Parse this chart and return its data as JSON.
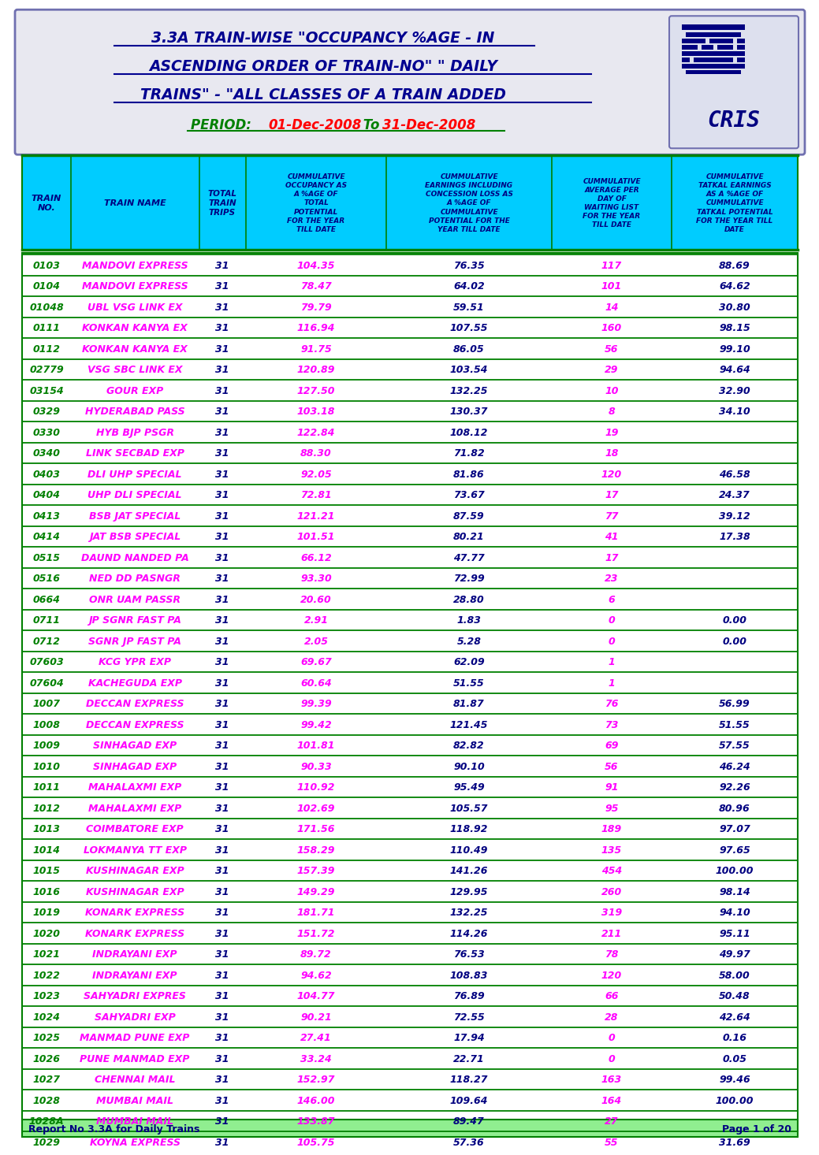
{
  "title_line1": "3.3A TRAIN-WISE \"OCCUPANCY %AGE - IN",
  "title_line2": "ASCENDING ORDER OF TRAIN-NO\" \" DAILY",
  "title_line3": "TRAINS\" - \"ALL CLASSES OF A TRAIN ADDED",
  "period_label": "PERIOD: ",
  "period_date1": "01-Dec-2008",
  "period_to": " To ",
  "period_date2": "31-Dec-2008",
  "footer_left": "Report No 3.3A for Daily Trains",
  "footer_right": "Page 1 of 20",
  "rows": [
    [
      "0103",
      "MANDOVI EXPRESS",
      "31",
      "104.35",
      "76.35",
      "117",
      "88.69"
    ],
    [
      "0104",
      "MANDOVI EXPRESS",
      "31",
      "78.47",
      "64.02",
      "101",
      "64.62"
    ],
    [
      "01048",
      "UBL VSG LINK EX",
      "31",
      "79.79",
      "59.51",
      "14",
      "30.80"
    ],
    [
      "0111",
      "KONKAN KANYA EX",
      "31",
      "116.94",
      "107.55",
      "160",
      "98.15"
    ],
    [
      "0112",
      "KONKAN KANYA EX",
      "31",
      "91.75",
      "86.05",
      "56",
      "99.10"
    ],
    [
      "02779",
      "VSG SBC LINK EX",
      "31",
      "120.89",
      "103.54",
      "29",
      "94.64"
    ],
    [
      "03154",
      "GOUR EXP",
      "31",
      "127.50",
      "132.25",
      "10",
      "32.90"
    ],
    [
      "0329",
      "HYDERABAD PASS",
      "31",
      "103.18",
      "130.37",
      "8",
      "34.10"
    ],
    [
      "0330",
      "HYB BJP PSGR",
      "31",
      "122.84",
      "108.12",
      "19",
      ""
    ],
    [
      "0340",
      "LINK SECBAD EXP",
      "31",
      "88.30",
      "71.82",
      "18",
      ""
    ],
    [
      "0403",
      "DLI UHP SPECIAL",
      "31",
      "92.05",
      "81.86",
      "120",
      "46.58"
    ],
    [
      "0404",
      "UHP DLI SPECIAL",
      "31",
      "72.81",
      "73.67",
      "17",
      "24.37"
    ],
    [
      "0413",
      "BSB JAT SPECIAL",
      "31",
      "121.21",
      "87.59",
      "77",
      "39.12"
    ],
    [
      "0414",
      "JAT BSB SPECIAL",
      "31",
      "101.51",
      "80.21",
      "41",
      "17.38"
    ],
    [
      "0515",
      "DAUND NANDED PA",
      "31",
      "66.12",
      "47.77",
      "17",
      ""
    ],
    [
      "0516",
      "NED DD PASNGR",
      "31",
      "93.30",
      "72.99",
      "23",
      ""
    ],
    [
      "0664",
      "ONR UAM PASSR",
      "31",
      "20.60",
      "28.80",
      "6",
      ""
    ],
    [
      "0711",
      "JP SGNR FAST PA",
      "31",
      "2.91",
      "1.83",
      "0",
      "0.00"
    ],
    [
      "0712",
      "SGNR JP FAST PA",
      "31",
      "2.05",
      "5.28",
      "0",
      "0.00"
    ],
    [
      "07603",
      "KCG YPR EXP",
      "31",
      "69.67",
      "62.09",
      "1",
      ""
    ],
    [
      "07604",
      "KACHEGUDA EXP",
      "31",
      "60.64",
      "51.55",
      "1",
      ""
    ],
    [
      "1007",
      "DECCAN EXPRESS",
      "31",
      "99.39",
      "81.87",
      "76",
      "56.99"
    ],
    [
      "1008",
      "DECCAN EXPRESS",
      "31",
      "99.42",
      "121.45",
      "73",
      "51.55"
    ],
    [
      "1009",
      "SINHAGAD EXP",
      "31",
      "101.81",
      "82.82",
      "69",
      "57.55"
    ],
    [
      "1010",
      "SINHAGAD EXP",
      "31",
      "90.33",
      "90.10",
      "56",
      "46.24"
    ],
    [
      "1011",
      "MAHALAXMI EXP",
      "31",
      "110.92",
      "95.49",
      "91",
      "92.26"
    ],
    [
      "1012",
      "MAHALAXMI EXP",
      "31",
      "102.69",
      "105.57",
      "95",
      "80.96"
    ],
    [
      "1013",
      "COIMBATORE EXP",
      "31",
      "171.56",
      "118.92",
      "189",
      "97.07"
    ],
    [
      "1014",
      "LOKMANYA TT EXP",
      "31",
      "158.29",
      "110.49",
      "135",
      "97.65"
    ],
    [
      "1015",
      "KUSHINAGAR EXP",
      "31",
      "157.39",
      "141.26",
      "454",
      "100.00"
    ],
    [
      "1016",
      "KUSHINAGAR EXP",
      "31",
      "149.29",
      "129.95",
      "260",
      "98.14"
    ],
    [
      "1019",
      "KONARK EXPRESS",
      "31",
      "181.71",
      "132.25",
      "319",
      "94.10"
    ],
    [
      "1020",
      "KONARK EXPRESS",
      "31",
      "151.72",
      "114.26",
      "211",
      "95.11"
    ],
    [
      "1021",
      "INDRAYANI EXP",
      "31",
      "89.72",
      "76.53",
      "78",
      "49.97"
    ],
    [
      "1022",
      "INDRAYANI EXP",
      "31",
      "94.62",
      "108.83",
      "120",
      "58.00"
    ],
    [
      "1023",
      "SAHYADRI EXPRES",
      "31",
      "104.77",
      "76.89",
      "66",
      "50.48"
    ],
    [
      "1024",
      "SAHYADRI EXP",
      "31",
      "90.21",
      "72.55",
      "28",
      "42.64"
    ],
    [
      "1025",
      "MANMAD PUNE EXP",
      "31",
      "27.41",
      "17.94",
      "0",
      "0.16"
    ],
    [
      "1026",
      "PUNE MANMAD EXP",
      "31",
      "33.24",
      "22.71",
      "0",
      "0.05"
    ],
    [
      "1027",
      "CHENNAI MAIL",
      "31",
      "152.97",
      "118.27",
      "163",
      "99.46"
    ],
    [
      "1028",
      "MUMBAI MAIL",
      "31",
      "146.00",
      "109.64",
      "164",
      "100.00"
    ],
    [
      "1028A",
      "MUMBAI MAIL",
      "31",
      "133.87",
      "89.47",
      "27",
      ""
    ],
    [
      "1029",
      "KOYNA EXPRESS",
      "31",
      "105.75",
      "57.36",
      "55",
      "31.69"
    ]
  ],
  "header_bg": "#00ccff",
  "header_text_color": "#000080",
  "title_color": "#000090",
  "period_color": "#008000",
  "date_color": "#ff0000",
  "row_train_no_color": "#008000",
  "row_name_color": "#ff00ff",
  "row_trips_color": "#000080",
  "row_occ_color": "#ff00ff",
  "row_earn_color": "#000080",
  "row_wl_color": "#ff00ff",
  "row_tatkal_color": "#000080",
  "separator_color": "#008000",
  "footer_bg": "#90ee90",
  "footer_text_color": "#000080"
}
